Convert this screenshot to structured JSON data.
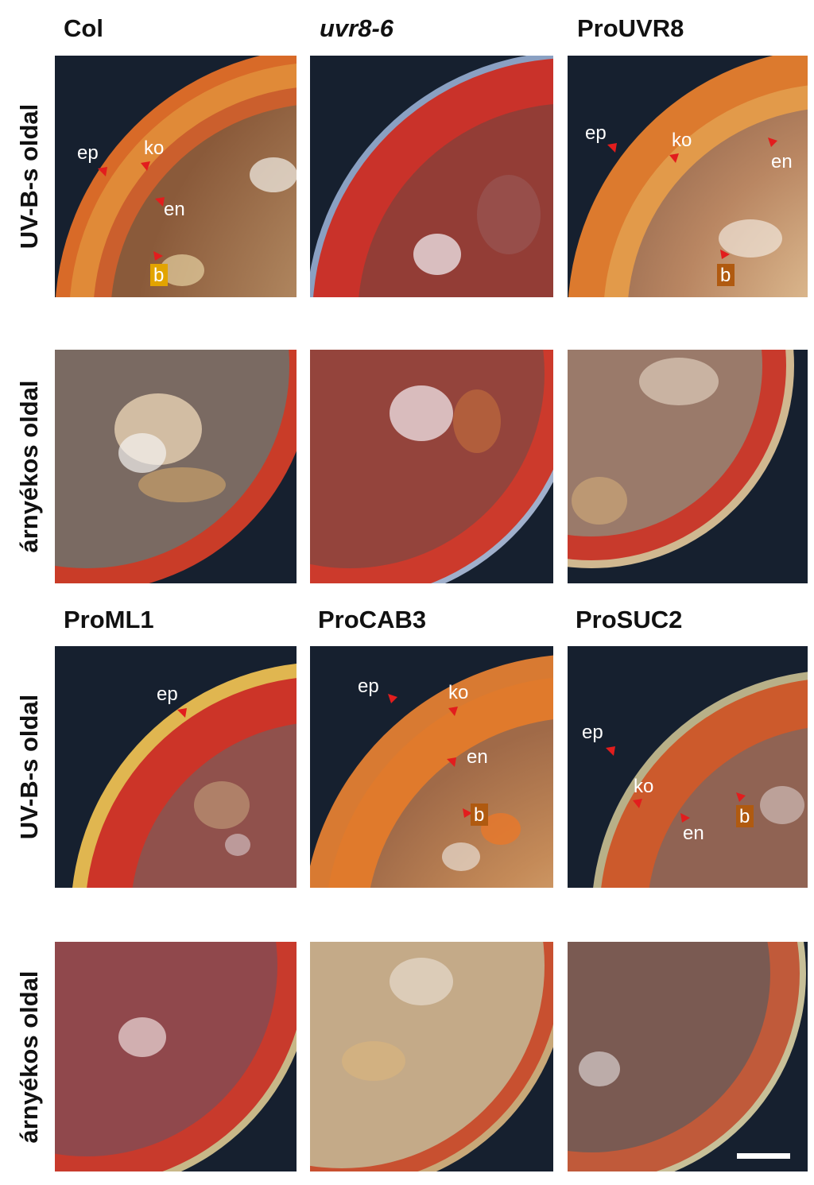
{
  "columns_top": [
    "Col",
    "uvr8-6",
    "ProUVR8"
  ],
  "columns_bottom": [
    "ProML1",
    "ProCAB3",
    "ProSUC2"
  ],
  "row_labels": {
    "uvb": "UV-B-s oldal",
    "shade": "árnyékos oldal"
  },
  "tissue_labels": {
    "ep": "ep",
    "ko": "ko",
    "en": "en",
    "b": "b"
  },
  "colors": {
    "background_dark": "#16202f",
    "tissue_red": "#c83424",
    "tissue_orange": "#d87a2e",
    "arrow_red": "#e21d1d",
    "label_box_yellow": "#e2a400",
    "label_box_orange": "#b05a10"
  }
}
